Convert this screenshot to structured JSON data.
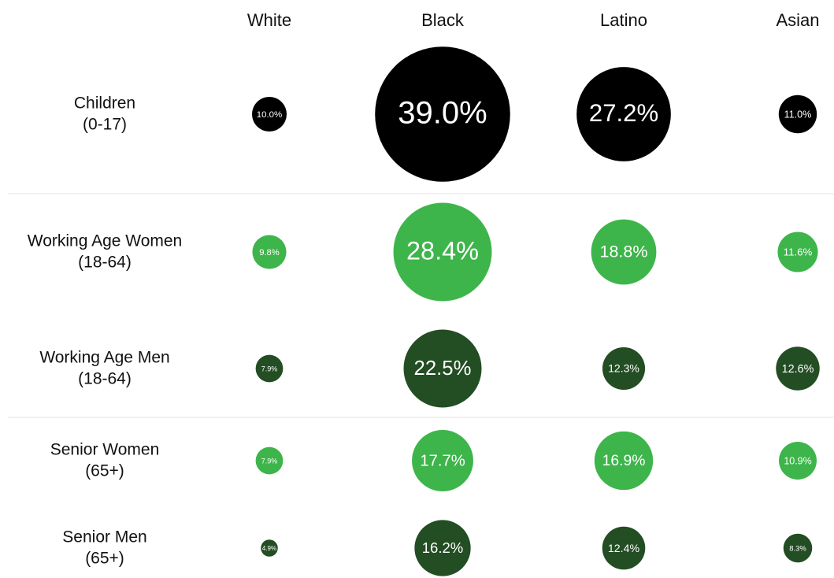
{
  "chart_data": {
    "type": "bubble",
    "categories": [
      "White",
      "Black",
      "Latino",
      "Asian"
    ],
    "series": [
      {
        "name": "Children",
        "subtitle": "(0-17)",
        "color": "#000000",
        "values": [
          10.0,
          39.0,
          27.2,
          11.0
        ],
        "value_labels": [
          "10.0%",
          "39.0%",
          "27.2%",
          "11.0%"
        ]
      },
      {
        "name": "Working Age Women",
        "subtitle": "(18-64)",
        "color": "#3db54a",
        "values": [
          9.8,
          28.4,
          18.8,
          11.6
        ],
        "value_labels": [
          "9.8%",
          "28.4%",
          "18.8%",
          "11.6%"
        ]
      },
      {
        "name": "Working Age Men",
        "subtitle": "(18-64)",
        "color": "#234d23",
        "values": [
          7.9,
          22.5,
          12.3,
          12.6
        ],
        "value_labels": [
          "7.9%",
          "22.5%",
          "12.3%",
          "12.6%"
        ]
      },
      {
        "name": "Senior Women",
        "subtitle": "(65+)",
        "color": "#3db54a",
        "values": [
          7.9,
          17.7,
          16.9,
          10.9
        ],
        "value_labels": [
          "7.9%",
          "17.7%",
          "16.9%",
          "10.9%"
        ]
      },
      {
        "name": "Senior Men",
        "subtitle": "(65+)",
        "color": "#234d23",
        "values": [
          4.9,
          16.2,
          12.4,
          8.3
        ],
        "value_labels": [
          "4.9%",
          "16.2%",
          "12.4%",
          "8.3%"
        ]
      }
    ]
  }
}
